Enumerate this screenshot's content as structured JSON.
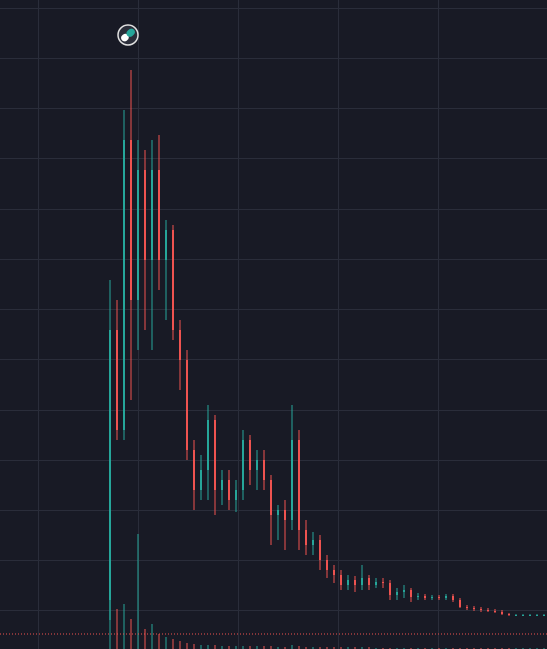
{
  "chart_data": {
    "type": "candlestick",
    "up_color": "#26a69a",
    "down_color": "#ef5350",
    "ylim": [
      0,
      649
    ],
    "open": [
      49,
      319,
      219,
      509,
      349,
      479,
      389,
      479,
      389,
      419,
      319,
      289,
      199,
      159,
      179,
      229,
      159,
      169,
      149,
      159,
      209,
      179,
      189,
      169,
      134,
      139,
      129,
      209,
      119,
      104,
      109,
      89,
      79,
      74,
      64,
      69,
      64,
      71,
      64,
      67,
      66,
      54,
      57,
      59,
      52,
      53,
      51,
      52,
      51,
      53,
      49,
      42,
      41,
      40,
      39,
      38,
      37,
      35,
      34,
      34,
      34,
      34,
      34
    ],
    "high": [
      369,
      349,
      539,
      579,
      509,
      499,
      509,
      514,
      429,
      424,
      329,
      299,
      209,
      194,
      244,
      234,
      179,
      179,
      169,
      219,
      214,
      199,
      199,
      174,
      144,
      149,
      244,
      219,
      129,
      117,
      114,
      94,
      84,
      79,
      74,
      73,
      84,
      74,
      71,
      71,
      69,
      61,
      64,
      61,
      56,
      55,
      54,
      54,
      55,
      55,
      51,
      44,
      43,
      42,
      41,
      40,
      39,
      36,
      35,
      35,
      35,
      35,
      35
    ],
    "low": [
      29,
      209,
      209,
      249,
      299,
      319,
      299,
      359,
      329,
      309,
      259,
      189,
      139,
      149,
      149,
      134,
      144,
      139,
      137,
      149,
      164,
      159,
      159,
      104,
      109,
      99,
      119,
      99,
      94,
      94,
      79,
      71,
      66,
      59,
      59,
      57,
      59,
      59,
      61,
      61,
      49,
      49,
      51,
      47,
      49,
      49,
      49,
      49,
      49,
      47,
      41,
      39,
      38,
      37,
      37,
      36,
      34,
      33,
      33,
      33,
      33,
      33,
      33
    ],
    "close": [
      319,
      219,
      509,
      349,
      479,
      389,
      479,
      389,
      419,
      319,
      289,
      199,
      159,
      179,
      229,
      159,
      169,
      149,
      159,
      209,
      179,
      189,
      169,
      134,
      139,
      129,
      209,
      119,
      104,
      109,
      89,
      79,
      74,
      64,
      69,
      64,
      71,
      64,
      67,
      66,
      54,
      57,
      59,
      52,
      53,
      51,
      52,
      51,
      53,
      49,
      42,
      41,
      40,
      39,
      38,
      37,
      35,
      34,
      34,
      34,
      34,
      34,
      34
    ],
    "volume": [
      130,
      40,
      45,
      30,
      115,
      20,
      25,
      15,
      12,
      10,
      8,
      6,
      5,
      4,
      4,
      4,
      3,
      3,
      3,
      3,
      3,
      3,
      3,
      3,
      2,
      2,
      4,
      3,
      2,
      2,
      2,
      2,
      2,
      2,
      2,
      2,
      2,
      2,
      1,
      1,
      1,
      1,
      1,
      1,
      1,
      1,
      1,
      1,
      1,
      1,
      1,
      1,
      1,
      1,
      1,
      1,
      1,
      1,
      1,
      1,
      1,
      1,
      1
    ],
    "volume_lim": [
      0,
      649
    ],
    "price_line": 15
  }
}
